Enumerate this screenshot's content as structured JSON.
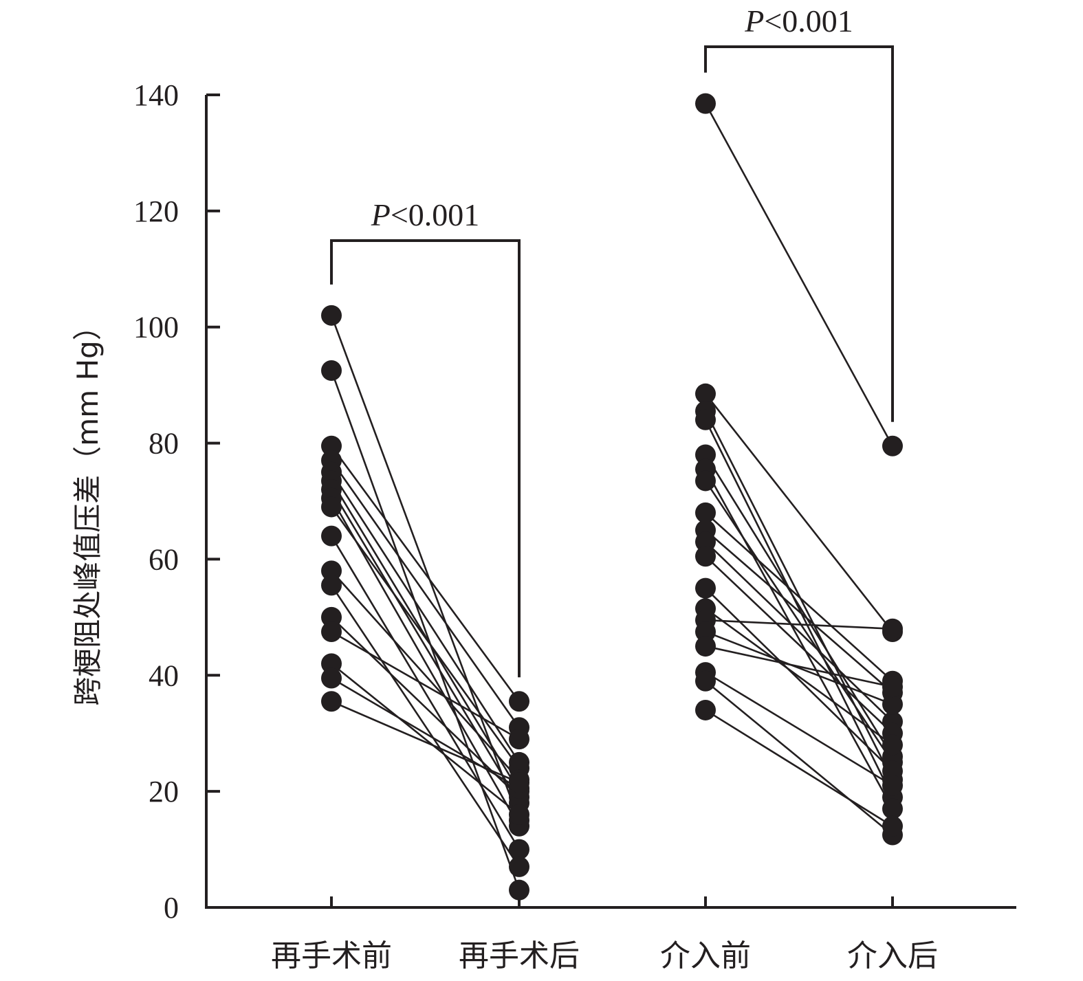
{
  "chart_data": {
    "type": "scatter",
    "subtype": "paired-dot-plot",
    "ylabel": "跨梗阻处峰值压差（mm Hg）",
    "xlabel": "",
    "ylim": [
      0,
      140
    ],
    "yticks": [
      "0",
      "20",
      "40",
      "60",
      "80",
      "100",
      "120",
      "140"
    ],
    "categories": [
      "再手术前",
      "再手术后",
      "介入前",
      "介入后"
    ],
    "comparisons": [
      {
        "name": "再手术",
        "from_category": "再手术前",
        "to_category": "再手术后",
        "p_label": "P",
        "p_value": "<0.001",
        "pairs": [
          [
            102,
            15
          ],
          [
            92.5,
            3
          ],
          [
            79.5,
            35.5
          ],
          [
            77,
            31
          ],
          [
            75,
            25
          ],
          [
            73.5,
            20
          ],
          [
            72,
            18
          ],
          [
            70.5,
            14
          ],
          [
            69,
            24
          ],
          [
            64,
            10
          ],
          [
            58,
            22
          ],
          [
            55.5,
            7
          ],
          [
            50,
            19
          ],
          [
            47.5,
            29
          ],
          [
            42,
            16
          ],
          [
            39.5,
            20.5
          ],
          [
            35.5,
            21.5
          ]
        ]
      },
      {
        "name": "介入",
        "from_category": "介入前",
        "to_category": "介入后",
        "p_label": "P",
        "p_value": "<0.001",
        "pairs": [
          [
            138.5,
            79.5
          ],
          [
            88.5,
            47.5
          ],
          [
            85.5,
            22
          ],
          [
            84,
            19
          ],
          [
            78,
            26
          ],
          [
            75.5,
            17
          ],
          [
            73.5,
            25
          ],
          [
            68,
            39
          ],
          [
            65,
            37
          ],
          [
            63,
            32
          ],
          [
            60.5,
            30
          ],
          [
            55,
            23.5
          ],
          [
            51.5,
            28
          ],
          [
            49.5,
            48
          ],
          [
            47.5,
            35
          ],
          [
            45,
            38
          ],
          [
            40.5,
            21
          ],
          [
            39,
            12.5
          ],
          [
            34,
            14
          ]
        ]
      }
    ]
  }
}
